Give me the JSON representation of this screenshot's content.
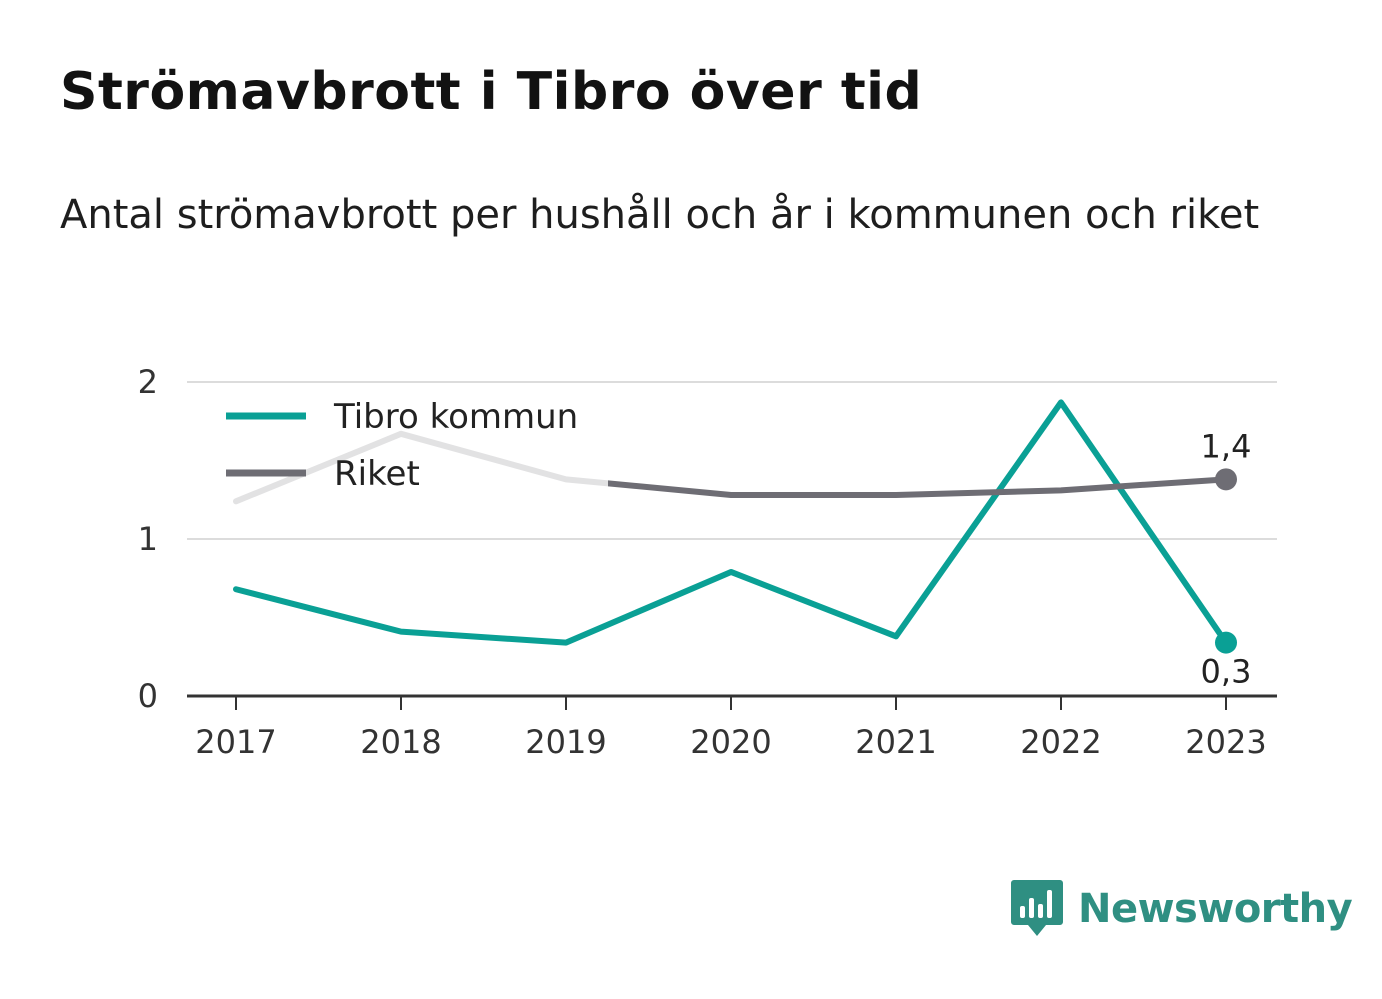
{
  "chart_data": {
    "type": "line",
    "title": "Strömavbrott i Tibro över tid",
    "subtitle": "Antal strömavbrott per hushåll och år i kommunen och riket",
    "categories": [
      "2017",
      "2018",
      "2019",
      "2020",
      "2021",
      "2022",
      "2023"
    ],
    "ylim": [
      0,
      2
    ],
    "yticks": [
      "0",
      "1",
      "2"
    ],
    "grid": true,
    "legend_position": "top-left",
    "series": [
      {
        "name": "Tibro kommun",
        "color": "#0aa095",
        "values": [
          0.68,
          0.41,
          0.34,
          0.79,
          0.38,
          1.87,
          0.34
        ],
        "end_label": "0,3"
      },
      {
        "name": "Riket",
        "color": "#6e6d74",
        "values": [
          1.24,
          1.67,
          1.38,
          1.28,
          1.28,
          1.31,
          1.38
        ],
        "end_label": "1,4"
      }
    ]
  },
  "brand": {
    "name": "Newsworthy",
    "color": "#2f8f82"
  }
}
